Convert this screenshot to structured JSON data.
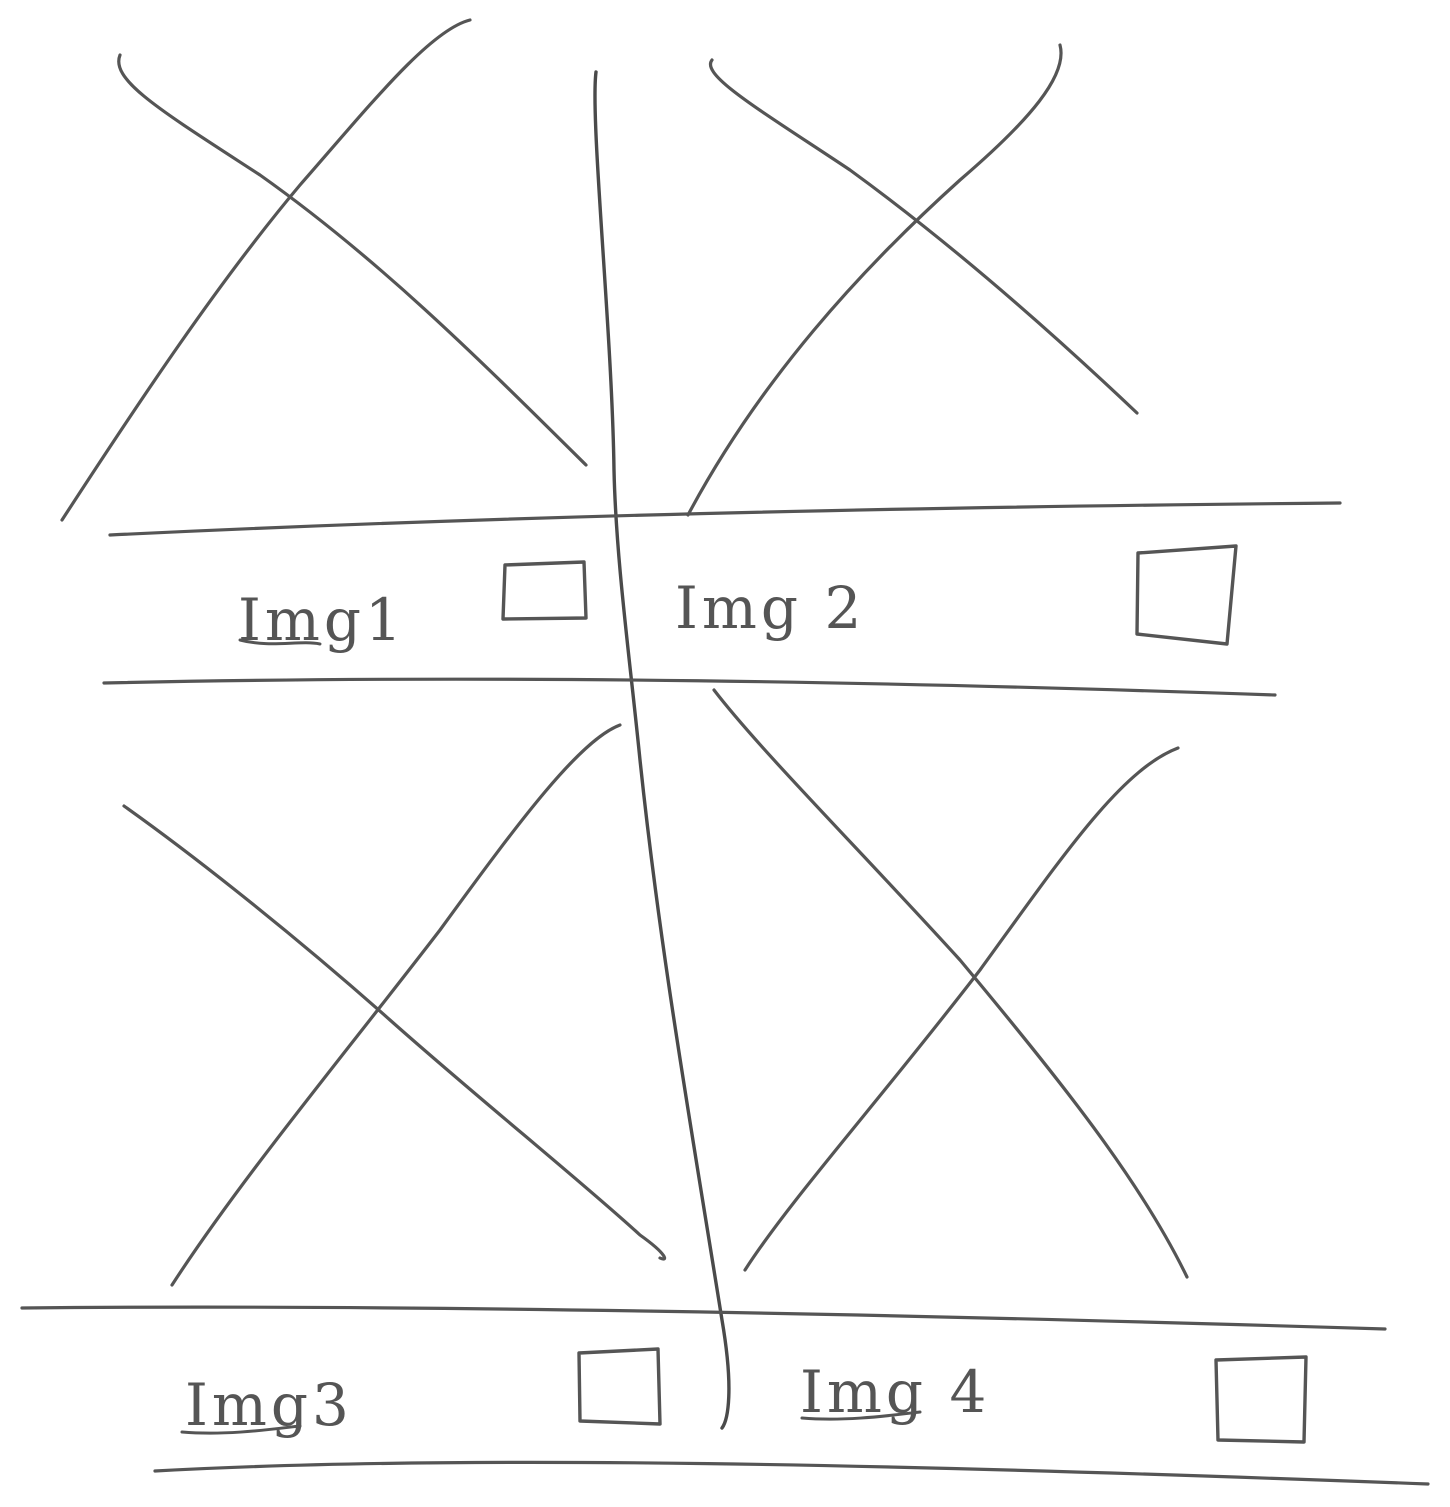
{
  "colors": {
    "ink": "#555555",
    "paper": "#ffffff"
  },
  "tiles": [
    {
      "label": "Img1",
      "checkbox": "unchecked",
      "image": "image-placeholder"
    },
    {
      "label": "Img 2",
      "checkbox": "unchecked",
      "image": "image-placeholder"
    },
    {
      "label": "Img3",
      "checkbox": "unchecked",
      "image": "image-placeholder"
    },
    {
      "label": "Img 4",
      "checkbox": "unchecked",
      "image": "image-placeholder"
    }
  ]
}
